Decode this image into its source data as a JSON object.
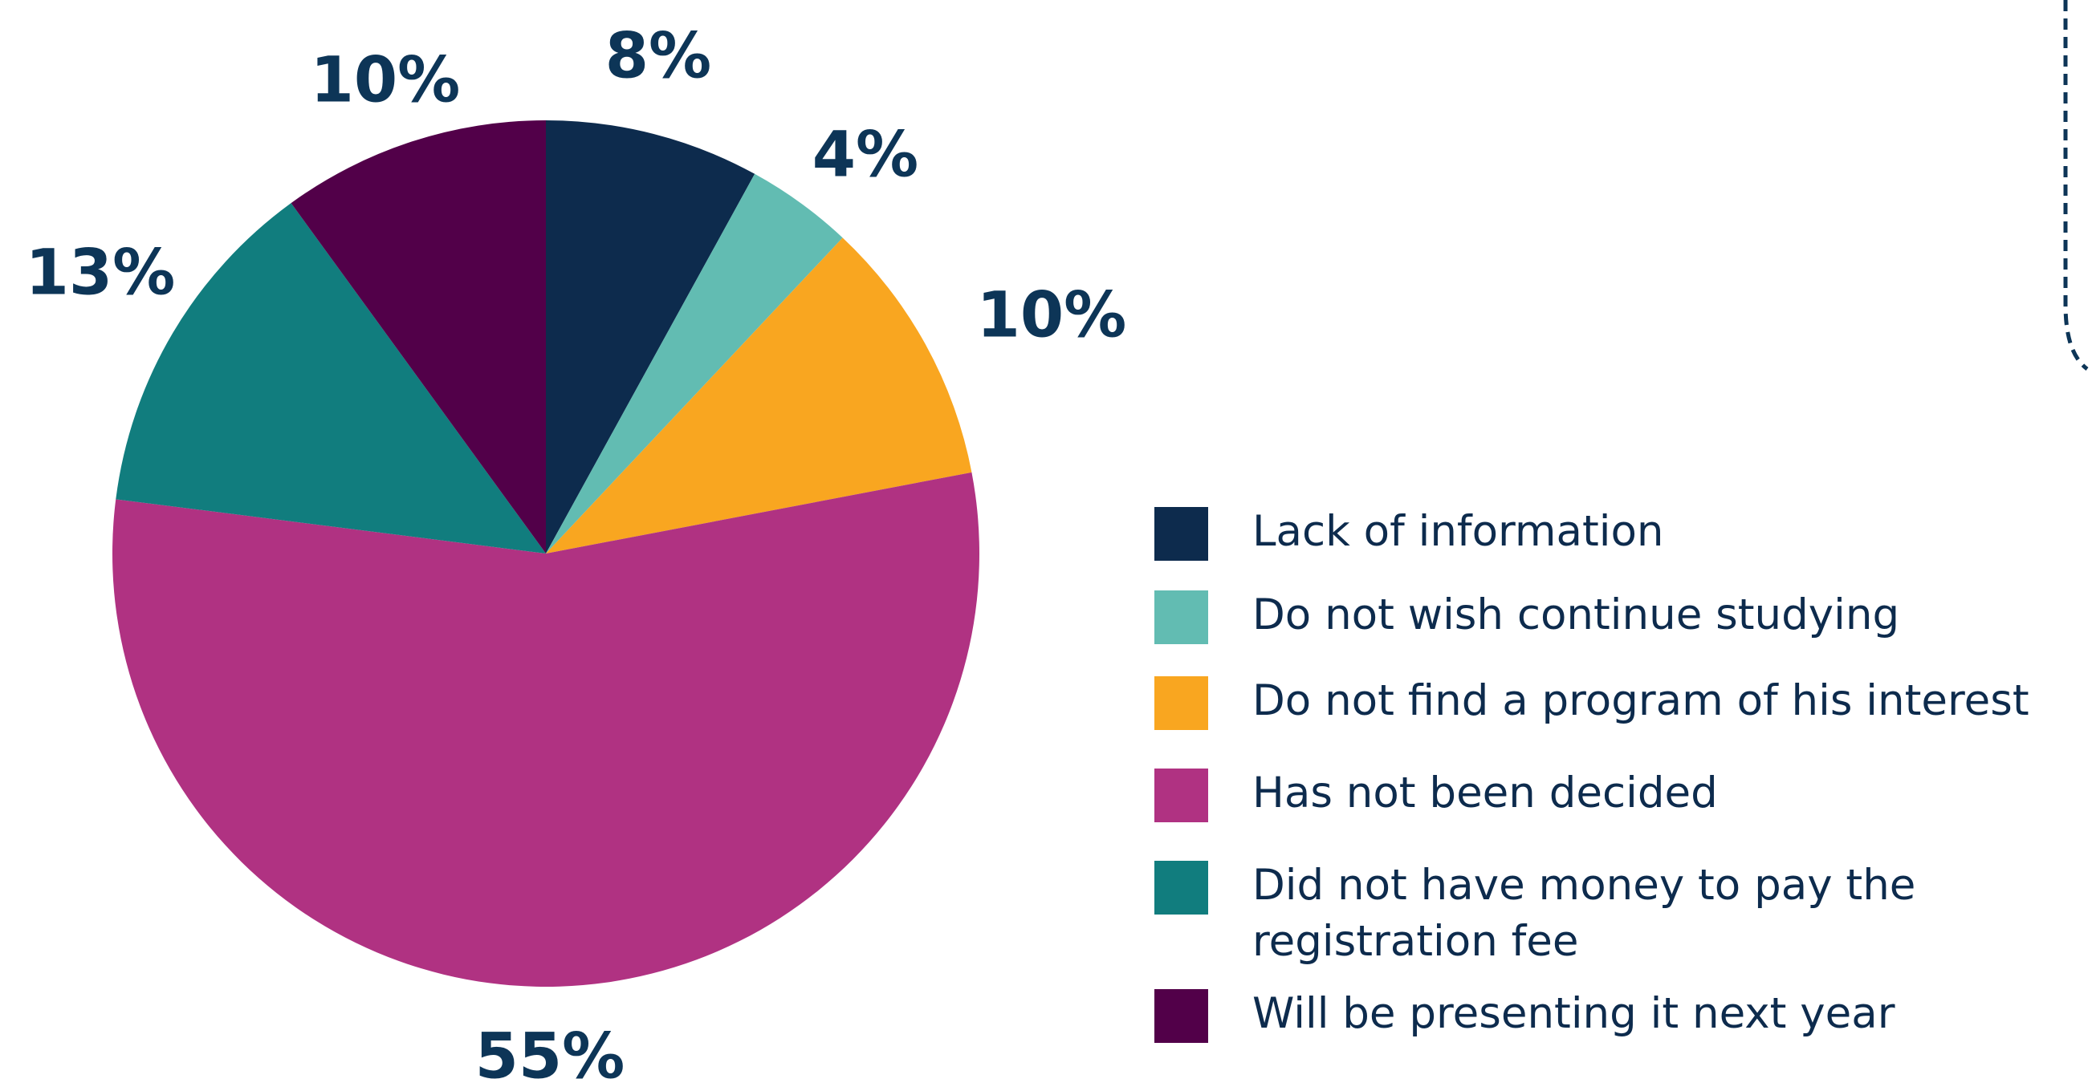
{
  "chart_data": {
    "type": "pie",
    "title": "",
    "legend_position": "right",
    "start_angle_deg": 0,
    "direction": "clockwise",
    "slices": [
      {
        "name": "Lack of information",
        "value": 8,
        "label": "8%",
        "color": "#0d2b4d"
      },
      {
        "name": "Do not wish continue studying",
        "value": 4,
        "label": "4%",
        "color": "#62bcb2"
      },
      {
        "name": "Do not find a program of his interest",
        "value": 10,
        "label": "10%",
        "color": "#f9a620"
      },
      {
        "name": "Has not been decided",
        "value": 55,
        "label": "55%",
        "color": "#b03282"
      },
      {
        "name": "Did not have money to pay the registration fee",
        "value": 13,
        "label": "13%",
        "color": "#117d7e"
      },
      {
        "name": "Will be presenting it next year",
        "value": 10,
        "label": "10%",
        "color": "#520049"
      }
    ]
  },
  "legend": {
    "items": [
      {
        "lines": [
          "Lack of information"
        ],
        "color": "#0d2b4d"
      },
      {
        "lines": [
          "Do not wish continue studying"
        ],
        "color": "#62bcb2"
      },
      {
        "lines": [
          "Do not find a program of his interest"
        ],
        "color": "#f9a620"
      },
      {
        "lines": [
          "Has not been decided"
        ],
        "color": "#b03282"
      },
      {
        "lines": [
          "Did not have money to pay the",
          "registration fee"
        ],
        "color": "#117d7e"
      },
      {
        "lines": [
          "Will be presenting it next year"
        ],
        "color": "#520049"
      }
    ]
  },
  "colors": {
    "label_text": "#0d3557",
    "legend_text": "#0d2b4d",
    "dashed_border": "#0d3557"
  }
}
